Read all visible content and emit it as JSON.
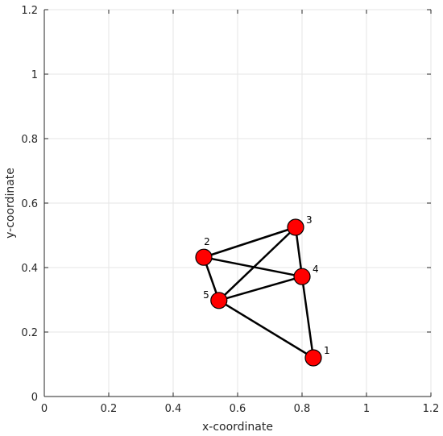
{
  "chart_data": {
    "type": "scatter",
    "title": "",
    "xlabel": "x-coordinate",
    "ylabel": "y-coordinate",
    "xlim": [
      0,
      1.2
    ],
    "ylim": [
      0,
      1.2
    ],
    "xticks": [
      "0",
      "0.2",
      "0.4",
      "0.6",
      "0.8",
      "1",
      "1.2"
    ],
    "yticks": [
      "0",
      "0.2",
      "0.4",
      "0.6",
      "0.8",
      "1",
      "1.2"
    ],
    "grid": true,
    "nodes": [
      {
        "label": "1",
        "x": 0.835,
        "y": 0.12
      },
      {
        "label": "2",
        "x": 0.495,
        "y": 0.432
      },
      {
        "label": "3",
        "x": 0.78,
        "y": 0.525
      },
      {
        "label": "4",
        "x": 0.8,
        "y": 0.372
      },
      {
        "label": "5",
        "x": 0.542,
        "y": 0.298
      }
    ],
    "edges": [
      [
        "1",
        "4"
      ],
      [
        "1",
        "5"
      ],
      [
        "2",
        "3"
      ],
      [
        "2",
        "4"
      ],
      [
        "2",
        "5"
      ],
      [
        "3",
        "4"
      ],
      [
        "3",
        "5"
      ],
      [
        "4",
        "5"
      ]
    ],
    "colors": {
      "node_fill": "#ff0000",
      "node_stroke": "#000000",
      "edge": "#000000",
      "grid": "#e6e6e6",
      "axis": "#262626"
    }
  }
}
